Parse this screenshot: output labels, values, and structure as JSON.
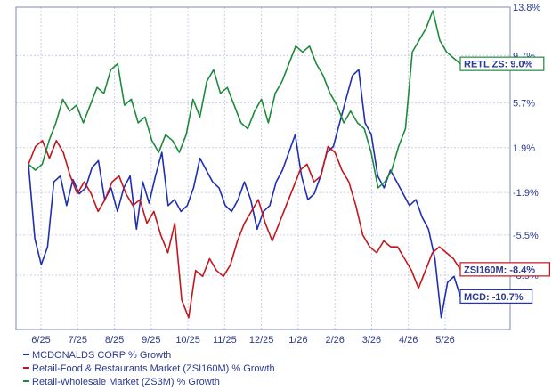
{
  "chart_data": {
    "type": "line",
    "x_labels": [
      "6/25",
      "7/25",
      "8/25",
      "9/25",
      "10/25",
      "11/25",
      "12/25",
      "1/26",
      "2/26",
      "3/26",
      "4/26",
      "5/26"
    ],
    "y_ticks": [
      "13.8%",
      "9.7%",
      "5.7%",
      "1.9%",
      "-1.9%",
      "-5.5%",
      "-8.9%"
    ],
    "ylim": [
      -13.5,
      13.8
    ],
    "grid": true,
    "legend_position": "bottom",
    "series": [
      {
        "name": "MCDONALDS CORP % Growth",
        "color": "#1f2fb3",
        "last_label": "MCD: -10.7%",
        "values": [
          0.5,
          -5.8,
          -8.0,
          -6.5,
          -1.0,
          -0.5,
          -3.0,
          -0.8,
          -2.0,
          -1.5,
          0.2,
          0.8,
          -2.5,
          -1.5,
          -3.5,
          -1.5,
          -0.5,
          -5.0,
          -1.0,
          -2.8,
          -0.5,
          1.5,
          -3.0,
          -2.5,
          -3.5,
          -3.0,
          -1.5,
          1.0,
          0.0,
          -1.0,
          -1.5,
          -3.0,
          -3.5,
          -2.5,
          -1.0,
          -2.5,
          -5.0,
          -3.5,
          -3.0,
          -1.0,
          0.0,
          1.5,
          3.0,
          -0.5,
          -2.5,
          -2.0,
          -0.5,
          1.5,
          2.0,
          4.0,
          6.0,
          8.0,
          8.5,
          4.0,
          3.0,
          -0.5,
          -1.5,
          0.0,
          -1.0,
          -2.0,
          -3.0,
          -2.5,
          -4.0,
          -5.0,
          -7.5,
          -12.5,
          -9.5,
          -9.0,
          -10.7
        ]
      },
      {
        "name": "Retail-Food & Restaurants Market (ZSI160M) % Growth",
        "color": "#c0181c",
        "last_label": "ZSI160M: -8.4%",
        "values": [
          0.5,
          2.0,
          2.5,
          1.0,
          2.5,
          1.5,
          -0.5,
          -2.0,
          -1.0,
          -2.0,
          -3.5,
          -2.5,
          -1.0,
          -0.5,
          -2.0,
          -3.0,
          -2.5,
          -4.5,
          -3.5,
          -5.5,
          -7.0,
          -4.5,
          -11.0,
          -12.5,
          -8.5,
          -9.0,
          -7.5,
          -8.5,
          -9.0,
          -8.0,
          -6.0,
          -4.5,
          -3.5,
          -2.5,
          -4.5,
          -6.0,
          -4.5,
          -3.0,
          -1.5,
          0.0,
          0.5,
          -1.0,
          -0.5,
          2.0,
          1.5,
          0.0,
          -1.0,
          -3.0,
          -5.5,
          -6.5,
          -7.0,
          -6.0,
          -6.5,
          -6.5,
          -7.5,
          -8.5,
          -10.0,
          -8.5,
          -7.0,
          -6.5,
          -7.0,
          -7.5,
          -8.4
        ]
      },
      {
        "name": "Retail-Wholesale Market (ZS3M) % Growth",
        "color": "#1e8a3c",
        "last_label": "RETL ZS: 9.0%",
        "values": [
          0.5,
          0.0,
          0.5,
          2.5,
          4.0,
          6.0,
          5.0,
          5.5,
          4.0,
          5.5,
          7.0,
          6.5,
          8.5,
          9.0,
          5.5,
          6.0,
          4.0,
          4.5,
          2.5,
          1.5,
          3.0,
          2.5,
          1.5,
          3.0,
          6.0,
          4.5,
          7.5,
          8.5,
          6.5,
          7.0,
          5.5,
          4.0,
          3.5,
          5.0,
          6.0,
          4.0,
          6.5,
          7.5,
          9.0,
          10.5,
          10.0,
          10.5,
          9.0,
          8.0,
          6.5,
          5.5,
          4.0,
          5.0,
          4.0,
          3.5,
          1.5,
          -1.5,
          -1.0,
          0.0,
          2.0,
          3.5,
          10.0,
          11.0,
          12.0,
          13.5,
          11.0,
          10.0,
          9.5,
          9.0
        ]
      }
    ]
  }
}
